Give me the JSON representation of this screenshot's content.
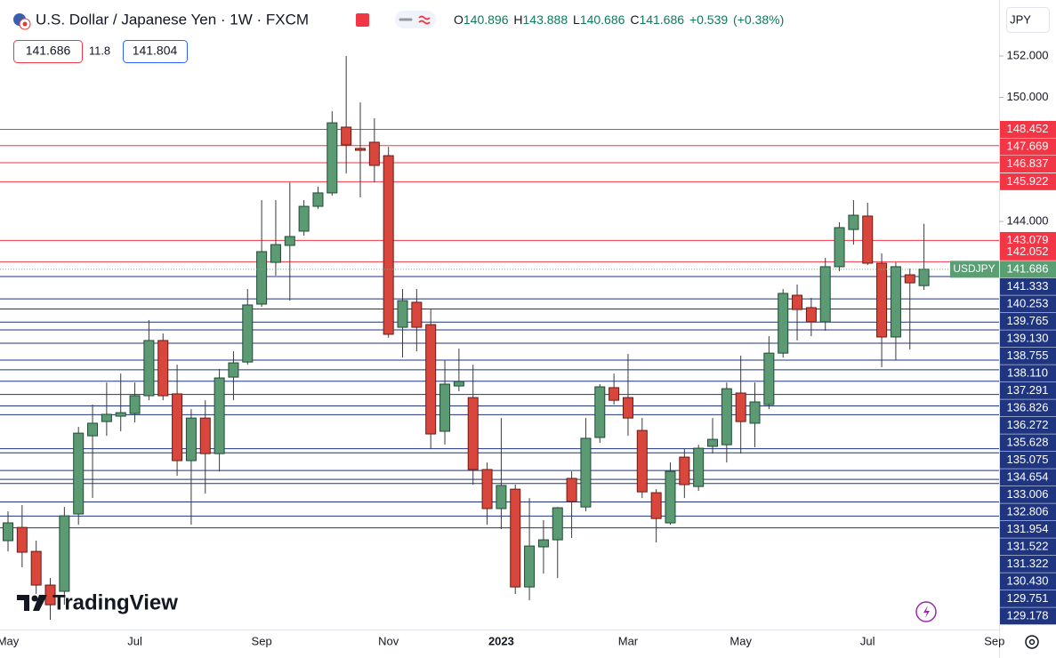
{
  "header": {
    "title": "U.S. Dollar / Japanese Yen · 1W · FXCM",
    "ohlc_labels": [
      "O",
      "H",
      "L",
      "C"
    ],
    "change": "+0.539",
    "change_pct": "(+0.38%)",
    "bid": 141.686,
    "spread": 11.8,
    "ask": 141.804,
    "currency": "JPY",
    "branding": "TradingView"
  },
  "chart_data": {
    "type": "candlestick",
    "symbol_label": "USDJPY",
    "categories": [
      "May",
      null,
      null,
      null,
      null,
      null,
      null,
      null,
      null,
      "Jul",
      null,
      null,
      null,
      null,
      null,
      null,
      null,
      null,
      "Sep",
      null,
      null,
      null,
      null,
      null,
      null,
      null,
      null,
      "Nov",
      null,
      null,
      null,
      null,
      null,
      null,
      null,
      "2023",
      null,
      null,
      null,
      null,
      null,
      null,
      null,
      null,
      "Mar",
      null,
      null,
      null,
      null,
      null,
      null,
      null,
      "May",
      null,
      null,
      null,
      null,
      null,
      null,
      null,
      null,
      "Jul",
      null,
      null,
      null,
      null,
      null,
      null,
      null,
      null,
      "Sep"
    ],
    "open": [
      128.56,
      129.2,
      128.04,
      126.41,
      126.11,
      129.85,
      133.63,
      134.32,
      134.58,
      134.71,
      135.57,
      138.24,
      135.66,
      132.43,
      134.49,
      132.77,
      136.47,
      137.2,
      140.0,
      142.02,
      142.84,
      143.53,
      144.73,
      145.38,
      148.56,
      147.53,
      147.83,
      147.18,
      138.88,
      140.09,
      139.01,
      133.85,
      136.04,
      135.48,
      132.0,
      130.11,
      131.05,
      126.32,
      128.26,
      128.6,
      131.57,
      130.19,
      133.55,
      135.96,
      135.48,
      133.89,
      130.88,
      129.42,
      132.6,
      131.18,
      133.12,
      133.2,
      135.7,
      134.24,
      135.14,
      137.63,
      140.43,
      139.83,
      139.14,
      141.81,
      143.61,
      144.26,
      141.98,
      138.41,
      141.42,
      140.896,
      null,
      null,
      null,
      null,
      null
    ],
    "high": [
      129.98,
      130.28,
      128.56,
      126.75,
      130.19,
      134.06,
      135.14,
      136.21,
      136.64,
      136.21,
      139.23,
      138.58,
      137.07,
      134.92,
      135.35,
      136.86,
      137.72,
      140.73,
      145.03,
      145.03,
      145.89,
      145.03,
      145.68,
      149.33,
      152.0,
      149.76,
      148.99,
      147.61,
      140.73,
      140.73,
      139.74,
      137.29,
      137.85,
      137.07,
      132.34,
      134.49,
      131.27,
      130.62,
      129.55,
      130.19,
      131.91,
      134.49,
      136.13,
      136.64,
      137.59,
      134.49,
      131.05,
      132.34,
      132.99,
      133.2,
      134.49,
      136.21,
      137.51,
      136.21,
      138.45,
      140.73,
      140.95,
      140.3,
      142.24,
      143.96,
      145.03,
      144.9,
      142.45,
      142.02,
      141.72,
      143.888,
      null,
      null,
      null,
      null,
      null
    ],
    "low": [
      128.04,
      127.27,
      125.98,
      124.73,
      125.46,
      129.33,
      130.62,
      133.63,
      133.85,
      134.28,
      135.35,
      135.35,
      131.7,
      129.33,
      130.84,
      131.91,
      135.35,
      137.07,
      139.87,
      141.38,
      140.17,
      143.31,
      144.6,
      145.25,
      146.32,
      145.16,
      145.89,
      138.37,
      137.42,
      137.72,
      132.99,
      133.2,
      135.79,
      131.27,
      129.33,
      129.12,
      125.98,
      125.68,
      126.97,
      126.75,
      128.69,
      129.98,
      133.29,
      135.14,
      133.63,
      130.62,
      128.47,
      129.33,
      130.62,
      130.97,
      132.77,
      132.34,
      132.77,
      133.08,
      134.92,
      137.42,
      138.24,
      138.45,
      138.71,
      141.59,
      142.88,
      141.89,
      136.95,
      137.29,
      137.81,
      140.686,
      null,
      null,
      null,
      null,
      null
    ],
    "close": [
      129.42,
      128.0,
      126.41,
      125.46,
      129.76,
      133.76,
      134.24,
      134.67,
      134.75,
      135.57,
      138.24,
      135.57,
      132.43,
      134.49,
      132.77,
      136.43,
      137.16,
      139.96,
      142.54,
      142.88,
      143.27,
      144.73,
      145.38,
      148.77,
      147.7,
      147.44,
      146.71,
      138.54,
      140.17,
      138.88,
      133.72,
      136.13,
      136.26,
      132.0,
      130.11,
      131.23,
      126.32,
      128.3,
      128.6,
      130.15,
      130.45,
      133.51,
      136.0,
      135.35,
      134.49,
      130.92,
      129.63,
      131.91,
      131.27,
      133.03,
      133.46,
      135.91,
      134.32,
      135.27,
      137.63,
      140.52,
      139.74,
      139.14,
      141.81,
      143.7,
      144.3,
      141.98,
      138.41,
      141.81,
      141.03,
      141.686,
      null,
      null,
      null,
      null,
      null
    ],
    "up_color": "#5b9a73",
    "down_color": "#d9463b",
    "last_color": "#5a9e74",
    "ylim": [
      124.26,
      154.71
    ],
    "yticks": [
      {
        "value": 144,
        "label": "144.000"
      },
      {
        "value": 150,
        "label": "150.000"
      },
      {
        "value": 152,
        "label": "152.000"
      }
    ],
    "grid": false,
    "levels": [
      {
        "color": "#f23645",
        "values": [
          148.452,
          147.669,
          146.837,
          145.922,
          143.079,
          142.052
        ]
      },
      {
        "color": "#1f3580",
        "values": [
          141.333,
          140.253,
          139.765,
          {
            "value": 139.13,
            "label": "139.130"
          },
          138.755,
          {
            "value": 138.11,
            "label": "138.110"
          },
          137.291,
          136.826,
          136.272,
          135.628,
          135.075,
          134.654,
          133.006,
          132.806,
          131.954,
          131.522,
          131.322,
          {
            "value": 130.43,
            "label": "130.430"
          },
          129.751,
          129.178
        ]
      }
    ]
  }
}
